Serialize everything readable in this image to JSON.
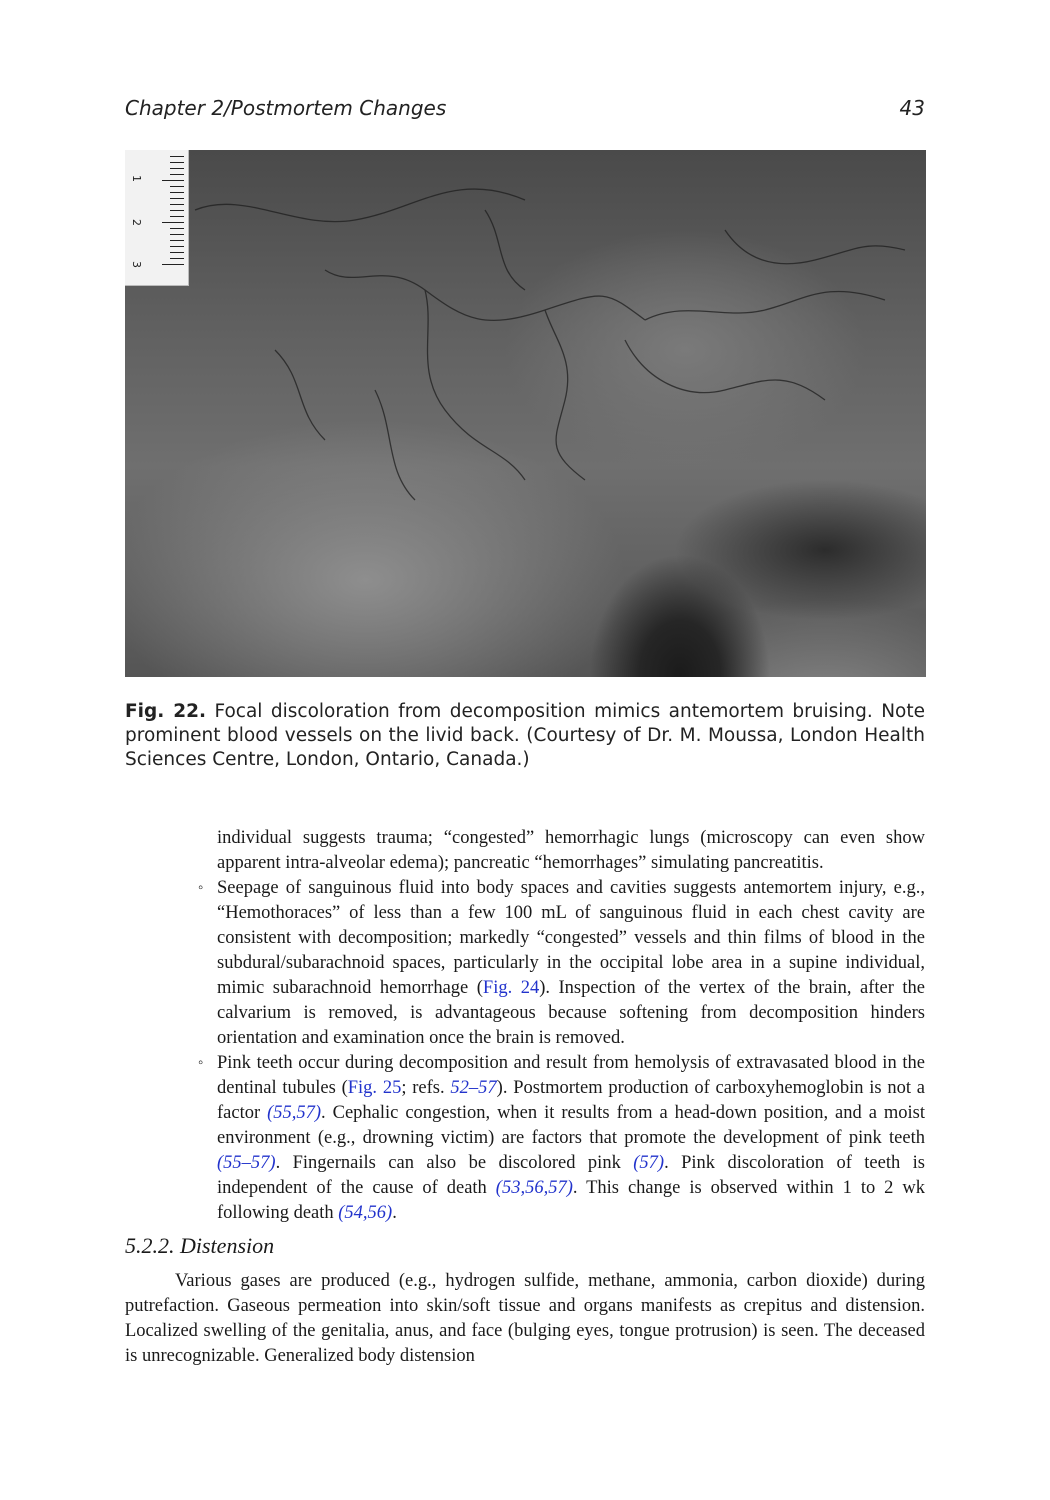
{
  "header": {
    "chapter": "Chapter 2/Postmortem Changes",
    "page_number": "43"
  },
  "figure": {
    "ruler_numbers": [
      "1",
      "2",
      "3"
    ]
  },
  "caption": {
    "label": "Fig. 22.",
    "text": " Focal discoloration from decomposition mimics antemortem bruising. Note prominent blood vessels on the livid back. (Courtesy of Dr. M. Moussa, London Health Sciences Centre, London, Ontario, Canada.)"
  },
  "continuation": {
    "text": "individual suggests trauma; “congested” hemorrhagic lungs (microscopy can even show apparent intra-alveolar edema); pancreatic “hemorrhages” simulating pancreatitis."
  },
  "bullets": [
    {
      "mark": "◦",
      "t1": "Seepage of sanguinous fluid into body spaces and cavities suggests antemortem injury, e.g., “Hemothoraces” of less than a few 100 mL of sanguinous fluid in each chest cavity are consistent with decomposition; markedly “congested” vessels and thin films of blood in the subdural/subarachnoid spaces, particularly in the occipital lobe area in a supine individual, mimic subarachnoid hemorrhage (",
      "ref1": "Fig. 24",
      "t2": "). Inspection of the vertex of the brain, after the calvarium is removed, is advantageous because softening from decomposition hinders orientation and examination once the brain is removed."
    },
    {
      "mark": "◦",
      "t1": "Pink teeth occur during decomposition and result from hemolysis of extravasated blood in the dentinal tubules (",
      "ref1": "Fig. 25",
      "t2": "; refs. ",
      "ref2": "52–57",
      "t3": "). Postmortem production of carboxyhemoglobin is not a factor ",
      "ref3": "(55,57)",
      "t4": ". Cephalic congestion, when it results from a head-down position, and a moist environment (e.g., drowning victim) are factors that promote the development of pink teeth ",
      "ref4": "(55–57)",
      "t5": ". Fingernails can also be discolored pink ",
      "ref5": "(57)",
      "t6": ". Pink discoloration of teeth is independent of the cause of death ",
      "ref6": "(53,56,57)",
      "t7": ". This change is observed within 1 to 2 wk following death ",
      "ref7": "(54,56)",
      "t8": "."
    }
  ],
  "section": {
    "heading": "5.2.2. Distension",
    "paragraph": "Various gases are produced (e.g., hydrogen sulfide, methane, ammonia, carbon dioxide) during putrefaction. Gaseous permeation into skin/soft tissue and organs manifests as crepitus and distension. Localized swelling of the genitalia, anus, and face (bulging eyes, tongue protrusion) is seen. The deceased is unrecognizable. Generalized body distension"
  }
}
